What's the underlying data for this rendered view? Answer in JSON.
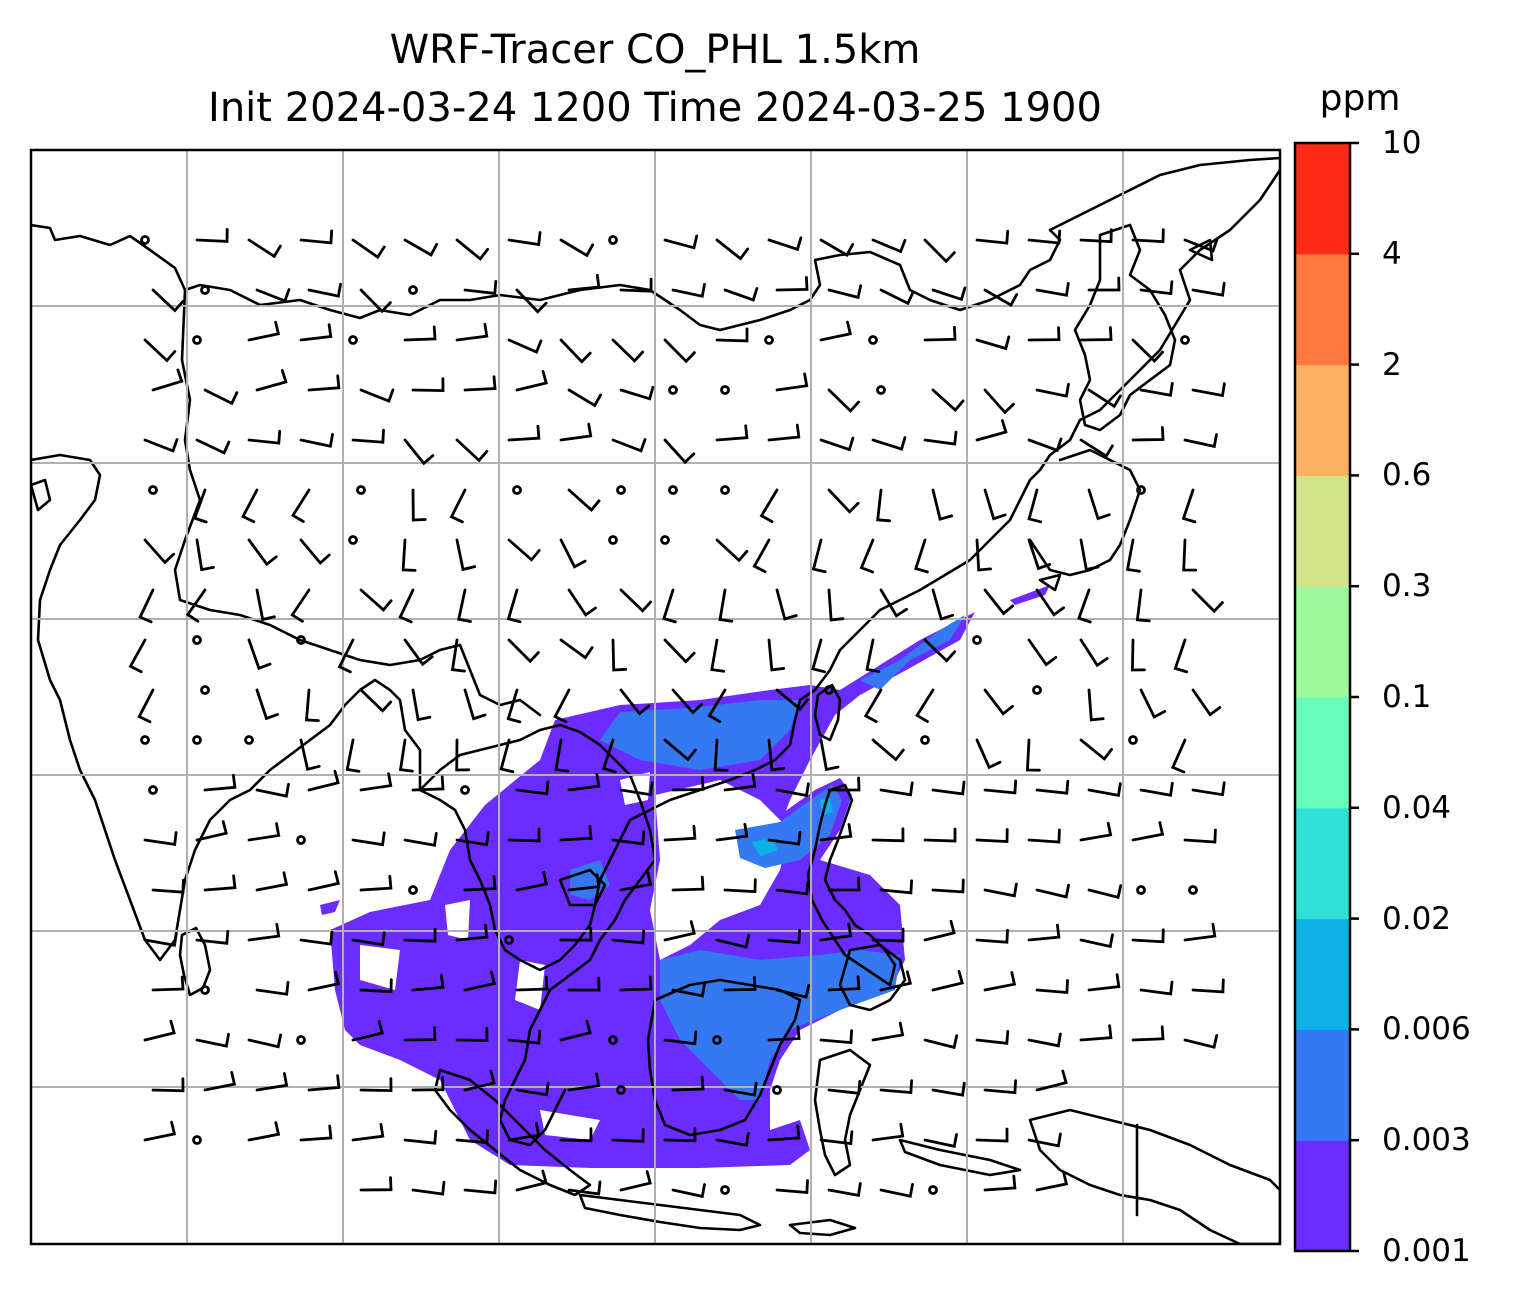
{
  "title": {
    "line1": "WRF-Tracer CO_PHL 1.5km",
    "line2": "Init 2024-03-24 1200 Time 2024-03-25 1900"
  },
  "colorbar": {
    "unit": "ppm",
    "levels": [
      "0.001",
      "0.003",
      "0.006",
      "0.02",
      "0.04",
      "0.1",
      "0.3",
      "0.6",
      "2",
      "4",
      "10"
    ],
    "colors": [
      "#6a2cff",
      "#3579f2",
      "#0db1e6",
      "#2fe0d5",
      "#6afcbc",
      "#9ef89c",
      "#d3e38a",
      "#fcb064",
      "#ff7840",
      "#ff2b18"
    ]
  },
  "map": {
    "region": "East & Southeast Asia",
    "gridlines": true,
    "overlay": "wind barbs",
    "coastline_color": "#000000",
    "plume_levels_present": [
      "0.001",
      "0.003",
      "0.006",
      "0.02"
    ]
  }
}
